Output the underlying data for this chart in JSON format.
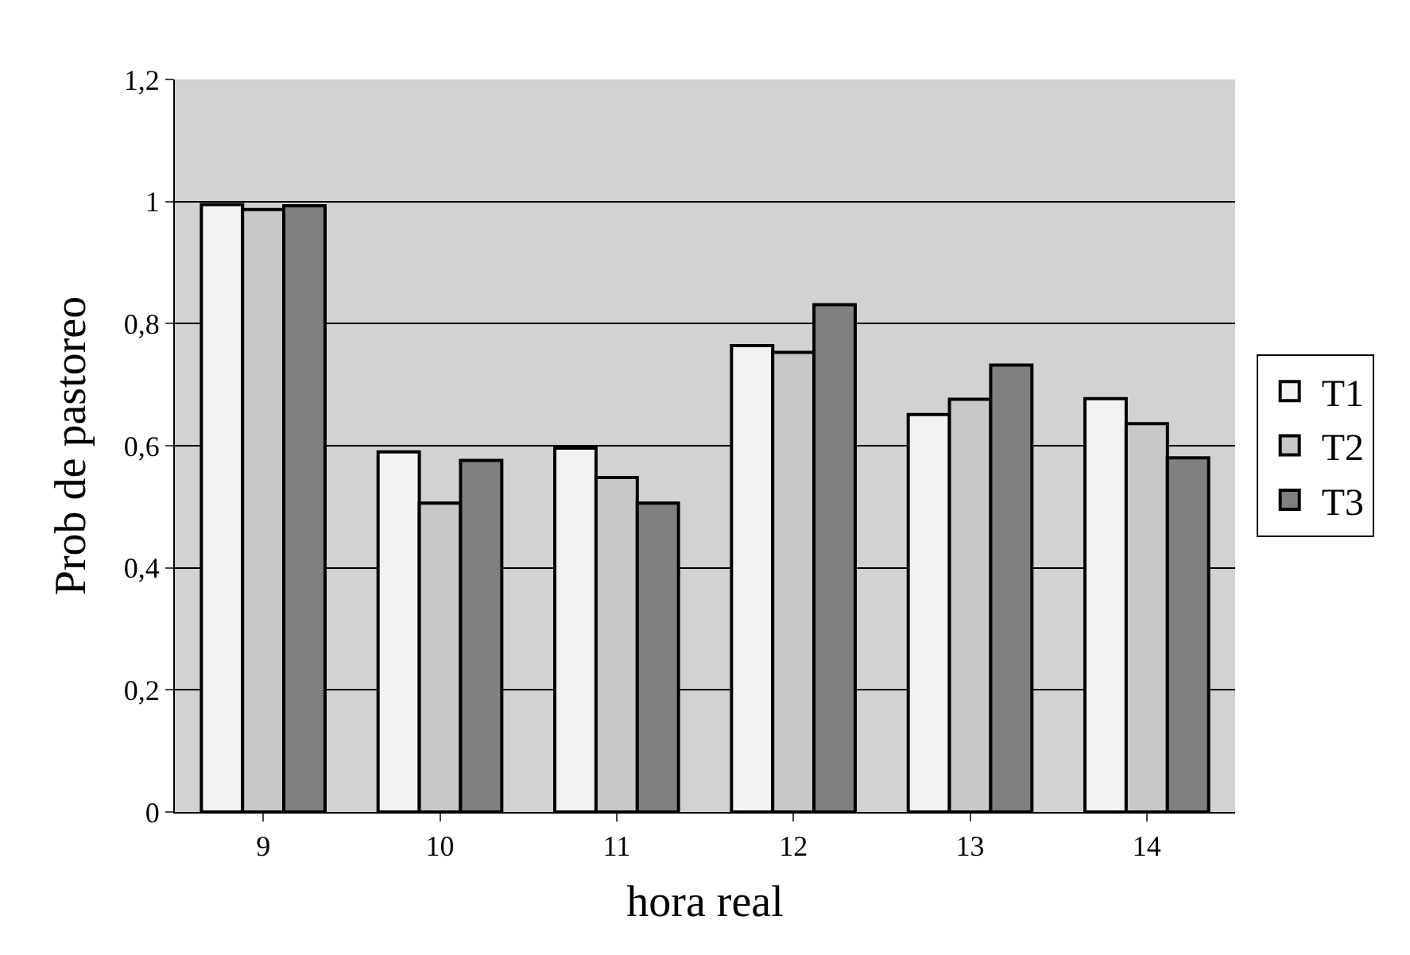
{
  "chart_data": {
    "type": "bar",
    "xlabel": "hora real",
    "ylabel": "Prob de pastoreo",
    "categories": [
      "9",
      "10",
      "11",
      "12",
      "13",
      "14"
    ],
    "series": [
      {
        "name": "T1",
        "color": "#f2f2f2",
        "values": [
          0.995,
          0.59,
          0.596,
          0.764,
          0.651,
          0.677
        ]
      },
      {
        "name": "T2",
        "color": "#c8c8c8",
        "values": [
          0.987,
          0.506,
          0.548,
          0.753,
          0.676,
          0.636
        ]
      },
      {
        "name": "T3",
        "color": "#808080",
        "values": [
          0.993,
          0.576,
          0.506,
          0.831,
          0.732,
          0.58
        ]
      }
    ],
    "ylim": [
      0,
      1.2
    ],
    "yticks": [
      0,
      {
        "value": 0.2,
        "label": "0,2"
      },
      {
        "value": 0.4,
        "label": "0,4"
      },
      {
        "value": 0.6,
        "label": "0,6"
      },
      {
        "value": 0.8,
        "label": "0,8"
      },
      1,
      {
        "value": 1.2,
        "label": "1,2"
      }
    ],
    "grid": "y",
    "legend": "right"
  }
}
